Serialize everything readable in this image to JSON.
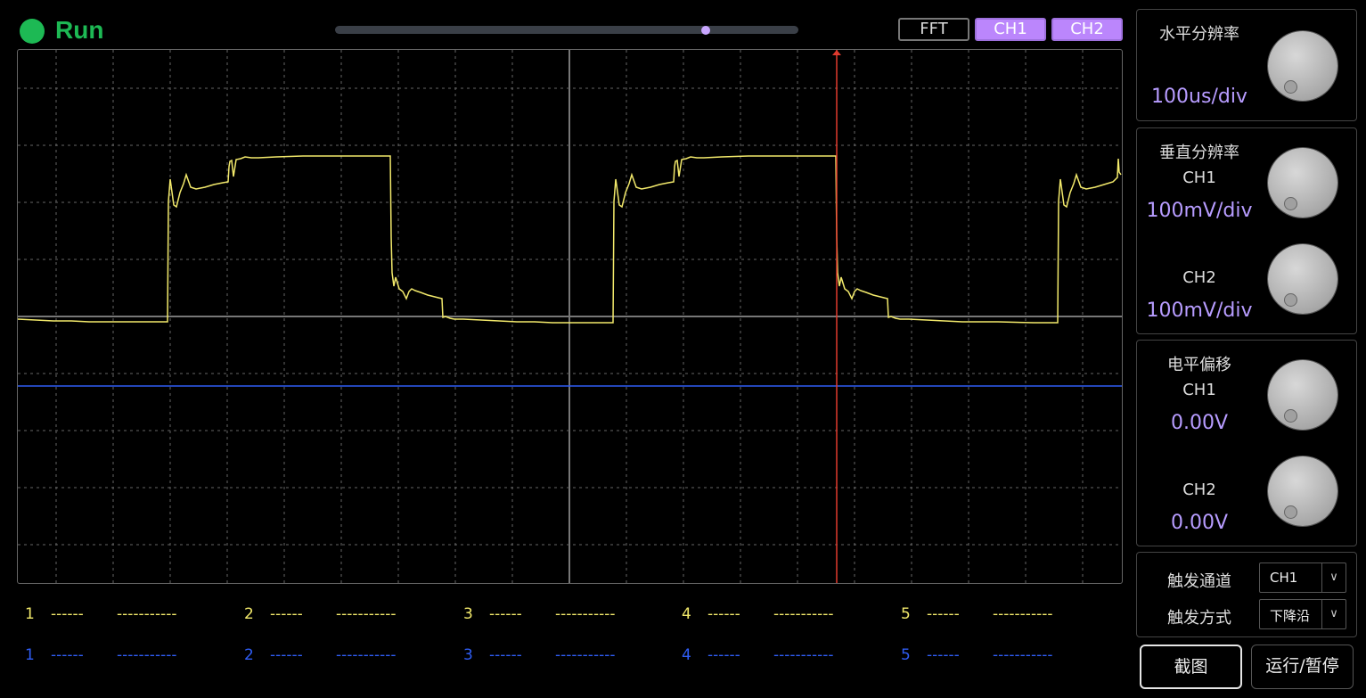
{
  "status": {
    "label": "Run",
    "color": "#1db954"
  },
  "timebase_slider": {
    "position_fraction": 0.8
  },
  "top_buttons": {
    "fft": "FFT",
    "ch1": "CH1",
    "ch2": "CH2"
  },
  "colors": {
    "accent": "#bb86fc",
    "ch1_trace": "#f2e96b",
    "ch2_trace": "#2f5df5",
    "trigger_line": "#e03a2e"
  },
  "measurements": {
    "ch1": [
      {
        "index": "1",
        "a": "------",
        "b": "-----------"
      },
      {
        "index": "2",
        "a": "------",
        "b": "-----------"
      },
      {
        "index": "3",
        "a": "------",
        "b": "-----------"
      },
      {
        "index": "4",
        "a": "------",
        "b": "-----------"
      },
      {
        "index": "5",
        "a": "------",
        "b": "-----------"
      }
    ],
    "ch2": [
      {
        "index": "1",
        "a": "------",
        "b": "-----------"
      },
      {
        "index": "2",
        "a": "------",
        "b": "-----------"
      },
      {
        "index": "3",
        "a": "------",
        "b": "-----------"
      },
      {
        "index": "4",
        "a": "------",
        "b": "-----------"
      },
      {
        "index": "5",
        "a": "------",
        "b": "-----------"
      }
    ]
  },
  "panel": {
    "horizontal": {
      "title": "水平分辨率",
      "value": "100us/div"
    },
    "vertical": {
      "title": "垂直分辨率",
      "ch1_label": "CH1",
      "ch1_value": "100mV/div",
      "ch2_label": "CH2",
      "ch2_value": "100mV/div"
    },
    "offset": {
      "title": "电平偏移",
      "ch1_label": "CH1",
      "ch1_value": "0.00V",
      "ch2_label": "CH2",
      "ch2_value": "0.00V"
    },
    "trigger": {
      "channel_label": "触发通道",
      "channel_value": "CH1",
      "mode_label": "触发方式",
      "mode_value": "下降沿"
    },
    "buttons": {
      "screenshot": "截图",
      "run_pause": "运行/暂停"
    }
  }
}
